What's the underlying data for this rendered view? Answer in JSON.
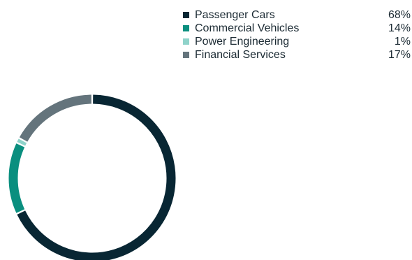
{
  "chart_data": {
    "type": "pie",
    "categories": [
      "Passenger Cars",
      "Commercial Vehicles",
      "Power Engineering",
      "Financial Services"
    ],
    "values": [
      68,
      14,
      1,
      17
    ],
    "value_labels": [
      "68%",
      "14%",
      "1%",
      "17%"
    ],
    "colors": [
      "#082633",
      "#0a8f7f",
      "#8fd3ca",
      "#64747c"
    ],
    "legend_position": "top-right"
  }
}
